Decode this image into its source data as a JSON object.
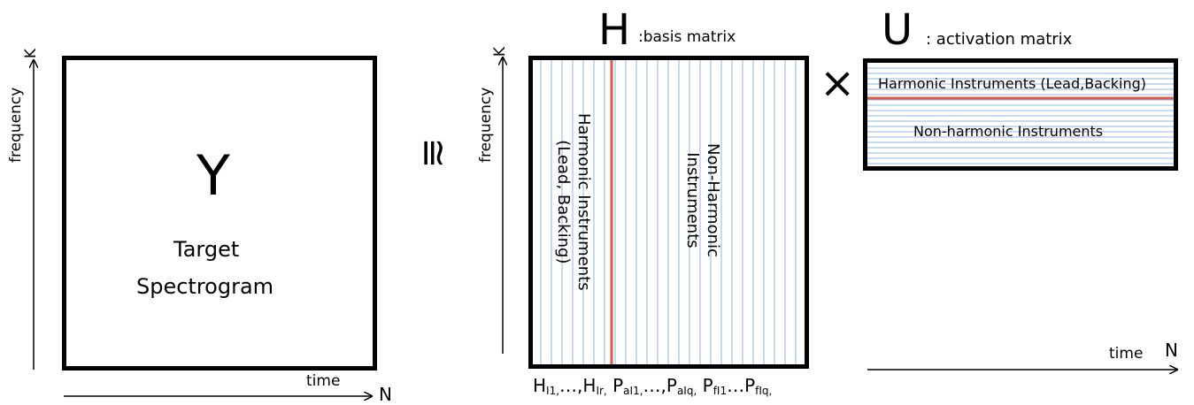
{
  "y_block": {
    "symbol": "Y",
    "caption_line1": "Target",
    "caption_line2": "Spectrogram",
    "axis_y_label": "frequency",
    "axis_y_end": "K",
    "axis_x_label": "time",
    "axis_x_end": "N"
  },
  "approx_symbol": "≅",
  "h_block": {
    "symbol": "H",
    "title": ":basis matrix",
    "axis_y_label": "frequency",
    "axis_y_end": "K",
    "harmonic_line1": "Harmonic Instruments",
    "harmonic_line2": "(Lead, Backing)",
    "nonharmonic_line1": "Non-Harmonic",
    "nonharmonic_line2": "Instruments",
    "bottom_labels": {
      "h_base": "H",
      "h_sub1": "I1,",
      "dots1": "…,",
      "h_sub2": "Ir,",
      "pa_base": "P",
      "pa_sub1": "aI1,",
      "dots2": "…,",
      "pa_sub2": "aIq,",
      "pf_base": "P",
      "pf_sub1": "fI1",
      "dots3": "…",
      "pf_sub2": "fIq,"
    }
  },
  "times_symbol": "×",
  "u_block": {
    "symbol": "U",
    "title": ": activation matrix",
    "harmonic_label": "Harmonic Instruments (Lead,Backing)",
    "nonharmonic_label": "Non-harmonic Instruments",
    "axis_x_label": "time",
    "axis_x_end": "N"
  },
  "colors": {
    "grid_line": "#8fb4e3",
    "divider": "#e05a4a",
    "border": "#000000"
  }
}
